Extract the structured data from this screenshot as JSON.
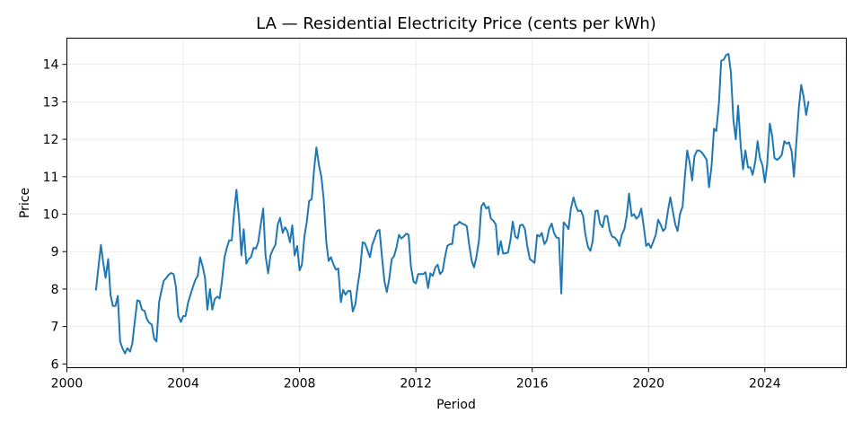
{
  "chart_data": {
    "type": "line",
    "title": "LA — Residential Electricity Price (cents per kWh)",
    "xlabel": "Period",
    "ylabel": "Price",
    "xlim": [
      2000,
      2026.8
    ],
    "ylim": [
      5.9,
      14.7
    ],
    "xticks": [
      2000,
      2004,
      2008,
      2012,
      2016,
      2020,
      2024
    ],
    "yticks": [
      6,
      7,
      8,
      9,
      10,
      11,
      12,
      13,
      14
    ],
    "grid": true,
    "color": "#1f77b4",
    "series": [
      {
        "x": [
          2001.0,
          2001.08,
          2001.17,
          2001.25,
          2001.33,
          2001.42,
          2001.5,
          2001.58,
          2001.67,
          2001.75,
          2001.83,
          2001.92,
          2002.0,
          2002.08,
          2002.17,
          2002.25,
          2002.33,
          2002.42,
          2002.5,
          2002.58,
          2002.67,
          2002.75,
          2002.83,
          2002.92,
          2003.0,
          2003.08,
          2003.17,
          2003.25,
          2003.33,
          2003.42,
          2003.5,
          2003.58,
          2003.67,
          2003.75,
          2003.83,
          2003.92,
          2004.0,
          2004.08,
          2004.17,
          2004.25,
          2004.33,
          2004.42,
          2004.5,
          2004.58,
          2004.67,
          2004.75,
          2004.83,
          2004.92,
          2005.0,
          2005.08,
          2005.17,
          2005.25,
          2005.33,
          2005.42,
          2005.5,
          2005.58,
          2005.67,
          2005.75,
          2005.83,
          2005.92,
          2006.0,
          2006.08,
          2006.17,
          2006.25,
          2006.33,
          2006.42,
          2006.5,
          2006.58,
          2006.67,
          2006.75,
          2006.83,
          2006.92,
          2007.0,
          2007.08,
          2007.17,
          2007.25,
          2007.33,
          2007.42,
          2007.5,
          2007.58,
          2007.67,
          2007.75,
          2007.83,
          2007.92,
          2008.0,
          2008.08,
          2008.17,
          2008.25,
          2008.33,
          2008.42,
          2008.5,
          2008.58,
          2008.67,
          2008.75,
          2008.83,
          2008.92,
          2009.0,
          2009.08,
          2009.17,
          2009.25,
          2009.33,
          2009.42,
          2009.5,
          2009.58,
          2009.67,
          2009.75,
          2009.83,
          2009.92,
          2010.0,
          2010.08,
          2010.17,
          2010.25,
          2010.33,
          2010.42,
          2010.5,
          2010.58,
          2010.67,
          2010.75,
          2010.83,
          2010.92,
          2011.0,
          2011.08,
          2011.17,
          2011.25,
          2011.33,
          2011.42,
          2011.5,
          2011.58,
          2011.67,
          2011.75,
          2011.83,
          2011.92,
          2012.0,
          2012.08,
          2012.17,
          2012.25,
          2012.33,
          2012.42,
          2012.5,
          2012.58,
          2012.67,
          2012.75,
          2012.83,
          2012.92,
          2013.0,
          2013.08,
          2013.17,
          2013.25,
          2013.33,
          2013.42,
          2013.5,
          2013.58,
          2013.67,
          2013.75,
          2013.83,
          2013.92,
          2014.0,
          2014.08,
          2014.17,
          2014.25,
          2014.33,
          2014.42,
          2014.5,
          2014.58,
          2014.67,
          2014.75,
          2014.83,
          2014.92,
          2015.0,
          2015.08,
          2015.17,
          2015.25,
          2015.33,
          2015.42,
          2015.5,
          2015.58,
          2015.67,
          2015.75,
          2015.83,
          2015.92,
          2016.0,
          2016.08,
          2016.17,
          2016.25,
          2016.33,
          2016.42,
          2016.5,
          2016.58,
          2016.67,
          2016.75,
          2016.83,
          2016.92,
          2017.0,
          2017.08,
          2017.17,
          2017.25,
          2017.33,
          2017.42,
          2017.5,
          2017.58,
          2017.67,
          2017.75,
          2017.83,
          2017.92,
          2018.0,
          2018.08,
          2018.17,
          2018.25,
          2018.33,
          2018.42,
          2018.5,
          2018.58,
          2018.67,
          2018.75,
          2018.83,
          2018.92,
          2019.0,
          2019.08,
          2019.17,
          2019.25,
          2019.33,
          2019.42,
          2019.5,
          2019.58,
          2019.67,
          2019.75,
          2019.83,
          2019.92,
          2020.0,
          2020.08,
          2020.17,
          2020.25,
          2020.33,
          2020.42,
          2020.5,
          2020.58,
          2020.67,
          2020.75,
          2020.83,
          2020.92,
          2021.0,
          2021.08,
          2021.17,
          2021.25,
          2021.33,
          2021.42,
          2021.5,
          2021.58,
          2021.67,
          2021.75,
          2021.83,
          2021.92,
          2022.0,
          2022.08,
          2022.17,
          2022.25,
          2022.33,
          2022.42,
          2022.5,
          2022.58,
          2022.67,
          2022.75,
          2022.83,
          2022.92,
          2023.0,
          2023.08,
          2023.17,
          2023.25,
          2023.33,
          2023.42,
          2023.5,
          2023.58,
          2023.67,
          2023.75,
          2023.83,
          2023.92,
          2024.0,
          2024.08,
          2024.17,
          2024.25,
          2024.33,
          2024.42,
          2024.5,
          2024.58,
          2024.67,
          2024.75,
          2024.83,
          2024.92,
          2025.0,
          2025.08,
          2025.17,
          2025.25,
          2025.33,
          2025.42,
          2025.5
        ],
        "y": [
          7.98,
          8.55,
          9.18,
          8.7,
          8.3,
          8.8,
          7.85,
          7.55,
          7.55,
          7.82,
          6.6,
          6.4,
          6.28,
          6.42,
          6.33,
          6.55,
          7.1,
          7.7,
          7.68,
          7.45,
          7.42,
          7.2,
          7.1,
          7.05,
          6.68,
          6.6,
          7.65,
          7.95,
          8.22,
          8.3,
          8.38,
          8.43,
          8.4,
          8.05,
          7.28,
          7.12,
          7.28,
          7.28,
          7.65,
          7.85,
          8.05,
          8.25,
          8.35,
          8.85,
          8.6,
          8.3,
          7.45,
          8.0,
          7.45,
          7.72,
          7.8,
          7.75,
          8.2,
          8.85,
          9.1,
          9.3,
          9.3,
          10.05,
          10.65,
          9.9,
          8.9,
          9.6,
          8.68,
          8.8,
          8.85,
          9.1,
          9.08,
          9.25,
          9.75,
          10.15,
          8.9,
          8.42,
          8.9,
          9.05,
          9.18,
          9.72,
          9.9,
          9.5,
          9.65,
          9.55,
          9.25,
          9.7,
          8.9,
          9.15,
          8.5,
          8.65,
          9.42,
          9.8,
          10.35,
          10.4,
          11.2,
          11.78,
          11.3,
          11.0,
          10.4,
          9.25,
          8.75,
          8.85,
          8.65,
          8.52,
          8.55,
          7.65,
          7.98,
          7.85,
          7.95,
          7.95,
          7.4,
          7.6,
          8.1,
          8.5,
          9.25,
          9.22,
          9.05,
          8.85,
          9.18,
          9.35,
          9.55,
          9.58,
          8.9,
          8.2,
          7.92,
          8.25,
          8.8,
          8.88,
          9.1,
          9.45,
          9.35,
          9.4,
          9.48,
          9.45,
          8.6,
          8.2,
          8.15,
          8.4,
          8.4,
          8.4,
          8.45,
          8.03,
          8.42,
          8.35,
          8.58,
          8.65,
          8.4,
          8.48,
          8.85,
          9.15,
          9.2,
          9.2,
          9.7,
          9.72,
          9.8,
          9.75,
          9.72,
          9.68,
          9.2,
          8.75,
          8.58,
          8.85,
          9.3,
          10.2,
          10.3,
          10.15,
          10.2,
          9.88,
          9.82,
          9.72,
          8.92,
          9.28,
          8.95,
          8.95,
          8.98,
          9.3,
          9.8,
          9.4,
          9.35,
          9.7,
          9.72,
          9.6,
          9.15,
          8.8,
          8.75,
          8.7,
          9.45,
          9.4,
          9.5,
          9.2,
          9.3,
          9.6,
          9.75,
          9.5,
          9.38,
          9.36,
          7.88,
          9.78,
          9.7,
          9.6,
          10.15,
          10.45,
          10.22,
          10.08,
          10.1,
          9.95,
          9.45,
          9.12,
          9.02,
          9.28,
          10.08,
          10.1,
          9.75,
          9.65,
          9.95,
          9.95,
          9.55,
          9.4,
          9.38,
          9.3,
          9.15,
          9.45,
          9.6,
          9.95,
          10.55,
          9.95,
          10.0,
          9.88,
          9.95,
          10.15,
          9.7,
          9.15,
          9.22,
          9.1,
          9.28,
          9.45,
          9.85,
          9.72,
          9.55,
          9.62,
          10.1,
          10.45,
          10.1,
          9.72,
          9.55,
          10.0,
          10.2,
          11.0,
          11.7,
          11.35,
          10.9,
          11.55,
          11.7,
          11.7,
          11.65,
          11.55,
          11.45,
          10.72,
          11.3,
          12.28,
          12.22,
          12.95,
          14.1,
          14.12,
          14.25,
          14.28,
          13.8,
          12.5,
          12.0,
          12.9,
          11.82,
          11.2,
          11.7,
          11.25,
          11.25,
          11.05,
          11.4,
          11.95,
          11.5,
          11.3,
          10.85,
          11.32,
          12.42,
          12.1,
          11.5,
          11.45,
          11.5,
          11.58,
          11.95,
          11.88,
          11.92,
          11.68,
          11.0,
          11.88,
          12.85,
          13.45,
          13.15,
          12.65,
          13.0
        ]
      }
    ]
  }
}
